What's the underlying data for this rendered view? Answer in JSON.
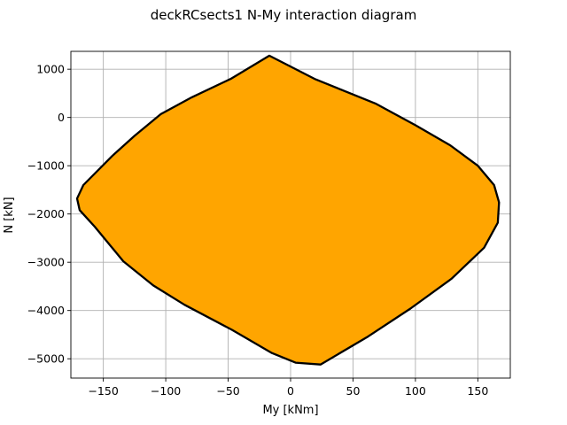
{
  "chart_data": {
    "type": "area",
    "title": "deckRCsects1 N-My interaction diagram",
    "xlabel": "My [kNm]",
    "ylabel": "N [kN]",
    "xlim": [
      -176,
      176
    ],
    "ylim": [
      -5400,
      1370
    ],
    "xticks": [
      -150,
      -100,
      -50,
      0,
      50,
      100,
      150
    ],
    "yticks": [
      -5000,
      -4000,
      -3000,
      -2000,
      -1000,
      0,
      1000
    ],
    "grid": true,
    "fill_color": "#ffa500",
    "edge_color": "#000000",
    "series": [
      {
        "x": [
          -17,
          20,
          68,
          100,
          128,
          150,
          163,
          167,
          166,
          155,
          129,
          96,
          62,
          24,
          4,
          -15,
          -47,
          -85,
          -110,
          -134,
          -157,
          -169,
          -171,
          -166,
          -143,
          -125,
          -104,
          -79,
          -48
        ],
        "y": [
          1280,
          790,
          290,
          -160,
          -580,
          -1000,
          -1400,
          -1760,
          -2180,
          -2700,
          -3340,
          -3960,
          -4540,
          -5120,
          -5080,
          -4880,
          -4400,
          -3880,
          -3480,
          -2980,
          -2260,
          -1920,
          -1680,
          -1400,
          -800,
          -380,
          70,
          420,
          800
        ]
      }
    ]
  }
}
